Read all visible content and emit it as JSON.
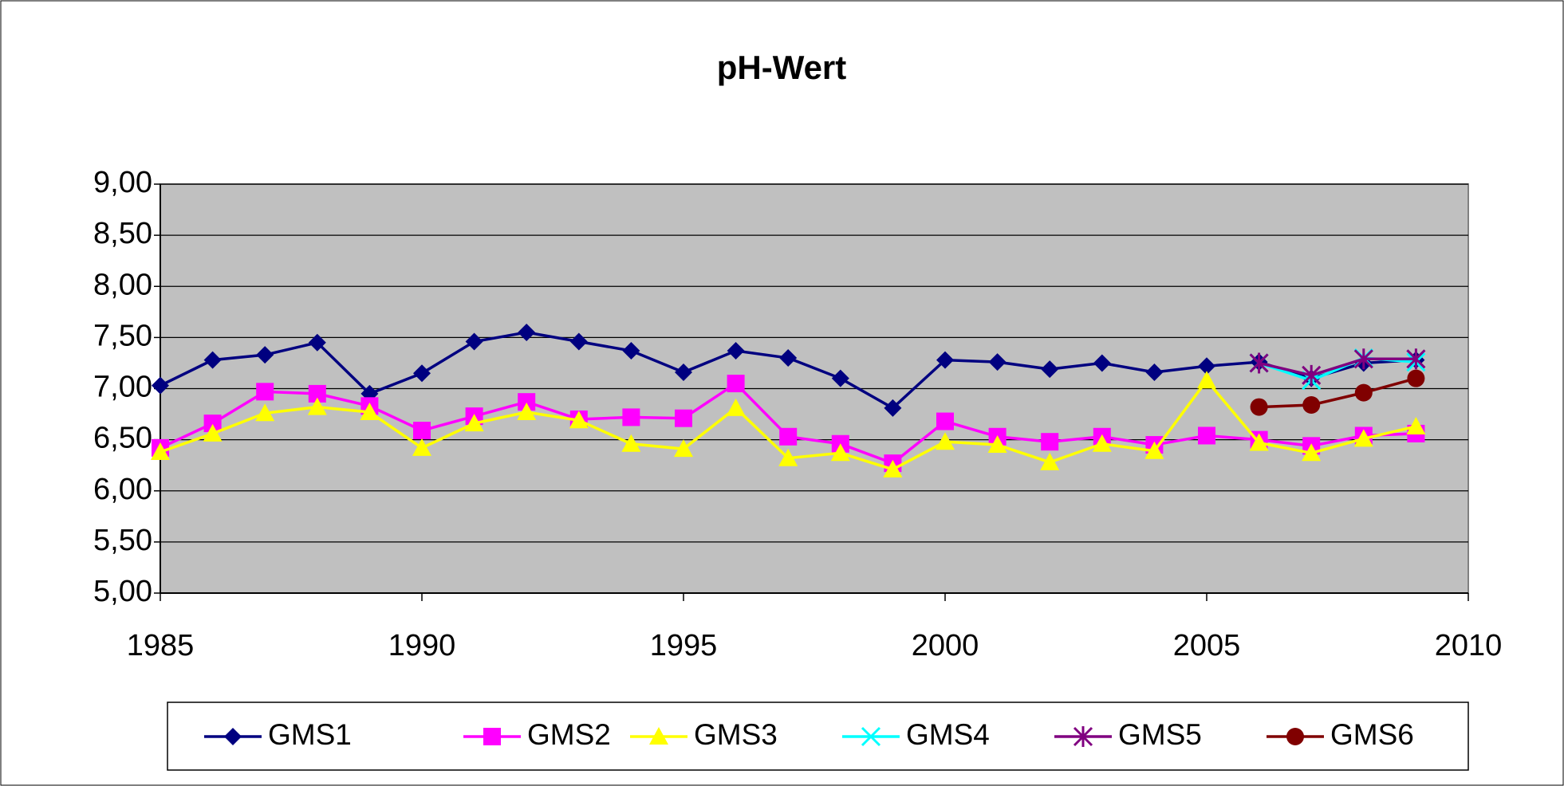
{
  "chart_data": {
    "type": "line",
    "title": "pH-Wert",
    "x": [
      1985,
      1986,
      1987,
      1988,
      1989,
      1990,
      1991,
      1992,
      1993,
      1994,
      1995,
      1996,
      1997,
      1998,
      1999,
      2000,
      2001,
      2002,
      2003,
      2004,
      2005,
      2006,
      2007,
      2008,
      2009
    ],
    "series": [
      {
        "name": "GMS1",
        "color": "#000080",
        "marker": "diamond",
        "values": [
          7.03,
          7.28,
          7.33,
          7.45,
          6.95,
          7.15,
          7.46,
          7.55,
          7.46,
          7.37,
          7.16,
          7.37,
          7.3,
          7.1,
          6.81,
          7.28,
          7.26,
          7.19,
          7.25,
          7.16,
          7.22,
          7.26,
          7.1,
          7.25,
          7.28
        ]
      },
      {
        "name": "GMS2",
        "color": "#ff00ff",
        "marker": "square",
        "values": [
          6.42,
          6.66,
          6.97,
          6.95,
          6.83,
          6.59,
          6.73,
          6.87,
          6.7,
          6.72,
          6.71,
          7.05,
          6.53,
          6.46,
          6.27,
          6.68,
          6.53,
          6.48,
          6.53,
          6.45,
          6.54,
          6.5,
          6.44,
          6.54,
          6.56
        ]
      },
      {
        "name": "GMS3",
        "color": "#ffff00",
        "marker": "triangle",
        "values": [
          6.38,
          6.56,
          6.76,
          6.82,
          6.77,
          6.42,
          6.66,
          6.77,
          6.69,
          6.46,
          6.41,
          6.81,
          6.32,
          6.37,
          6.21,
          6.48,
          6.45,
          6.28,
          6.46,
          6.39,
          7.08,
          6.47,
          6.37,
          6.51,
          6.63
        ]
      },
      {
        "name": "GMS4",
        "color": "#00ffff",
        "marker": "x",
        "values": [
          null,
          null,
          null,
          null,
          null,
          null,
          null,
          null,
          null,
          null,
          null,
          null,
          null,
          null,
          null,
          null,
          null,
          null,
          null,
          null,
          null,
          7.25,
          7.08,
          7.3,
          7.26
        ]
      },
      {
        "name": "GMS5",
        "color": "#800080",
        "marker": "star",
        "values": [
          null,
          null,
          null,
          null,
          null,
          null,
          null,
          null,
          null,
          null,
          null,
          null,
          null,
          null,
          null,
          null,
          null,
          null,
          null,
          null,
          null,
          7.25,
          7.13,
          7.29,
          7.29
        ]
      },
      {
        "name": "GMS6",
        "color": "#800000",
        "marker": "circle",
        "values": [
          null,
          null,
          null,
          null,
          null,
          null,
          null,
          null,
          null,
          null,
          null,
          null,
          null,
          null,
          null,
          null,
          null,
          null,
          null,
          null,
          null,
          6.82,
          6.84,
          6.96,
          7.1
        ]
      }
    ],
    "xlim": [
      1985,
      2010
    ],
    "xticks": [
      1985,
      1990,
      1995,
      2000,
      2005,
      2010
    ],
    "ylim": [
      5,
      9
    ],
    "yticks": [
      {
        "value": 5,
        "label": "5,00"
      },
      {
        "value": 5.5,
        "label": "5,50"
      },
      {
        "value": 6,
        "label": "6,00"
      },
      {
        "value": 6.5,
        "label": "6,50"
      },
      {
        "value": 7,
        "label": "7,00"
      },
      {
        "value": 7.5,
        "label": "7,50"
      },
      {
        "value": 8,
        "label": "8,00"
      },
      {
        "value": 8.5,
        "label": "8,50"
      },
      {
        "value": 9,
        "label": "9,00"
      }
    ],
    "grid": true,
    "plot_background": "#c0c0c0",
    "legend": "bottom"
  }
}
